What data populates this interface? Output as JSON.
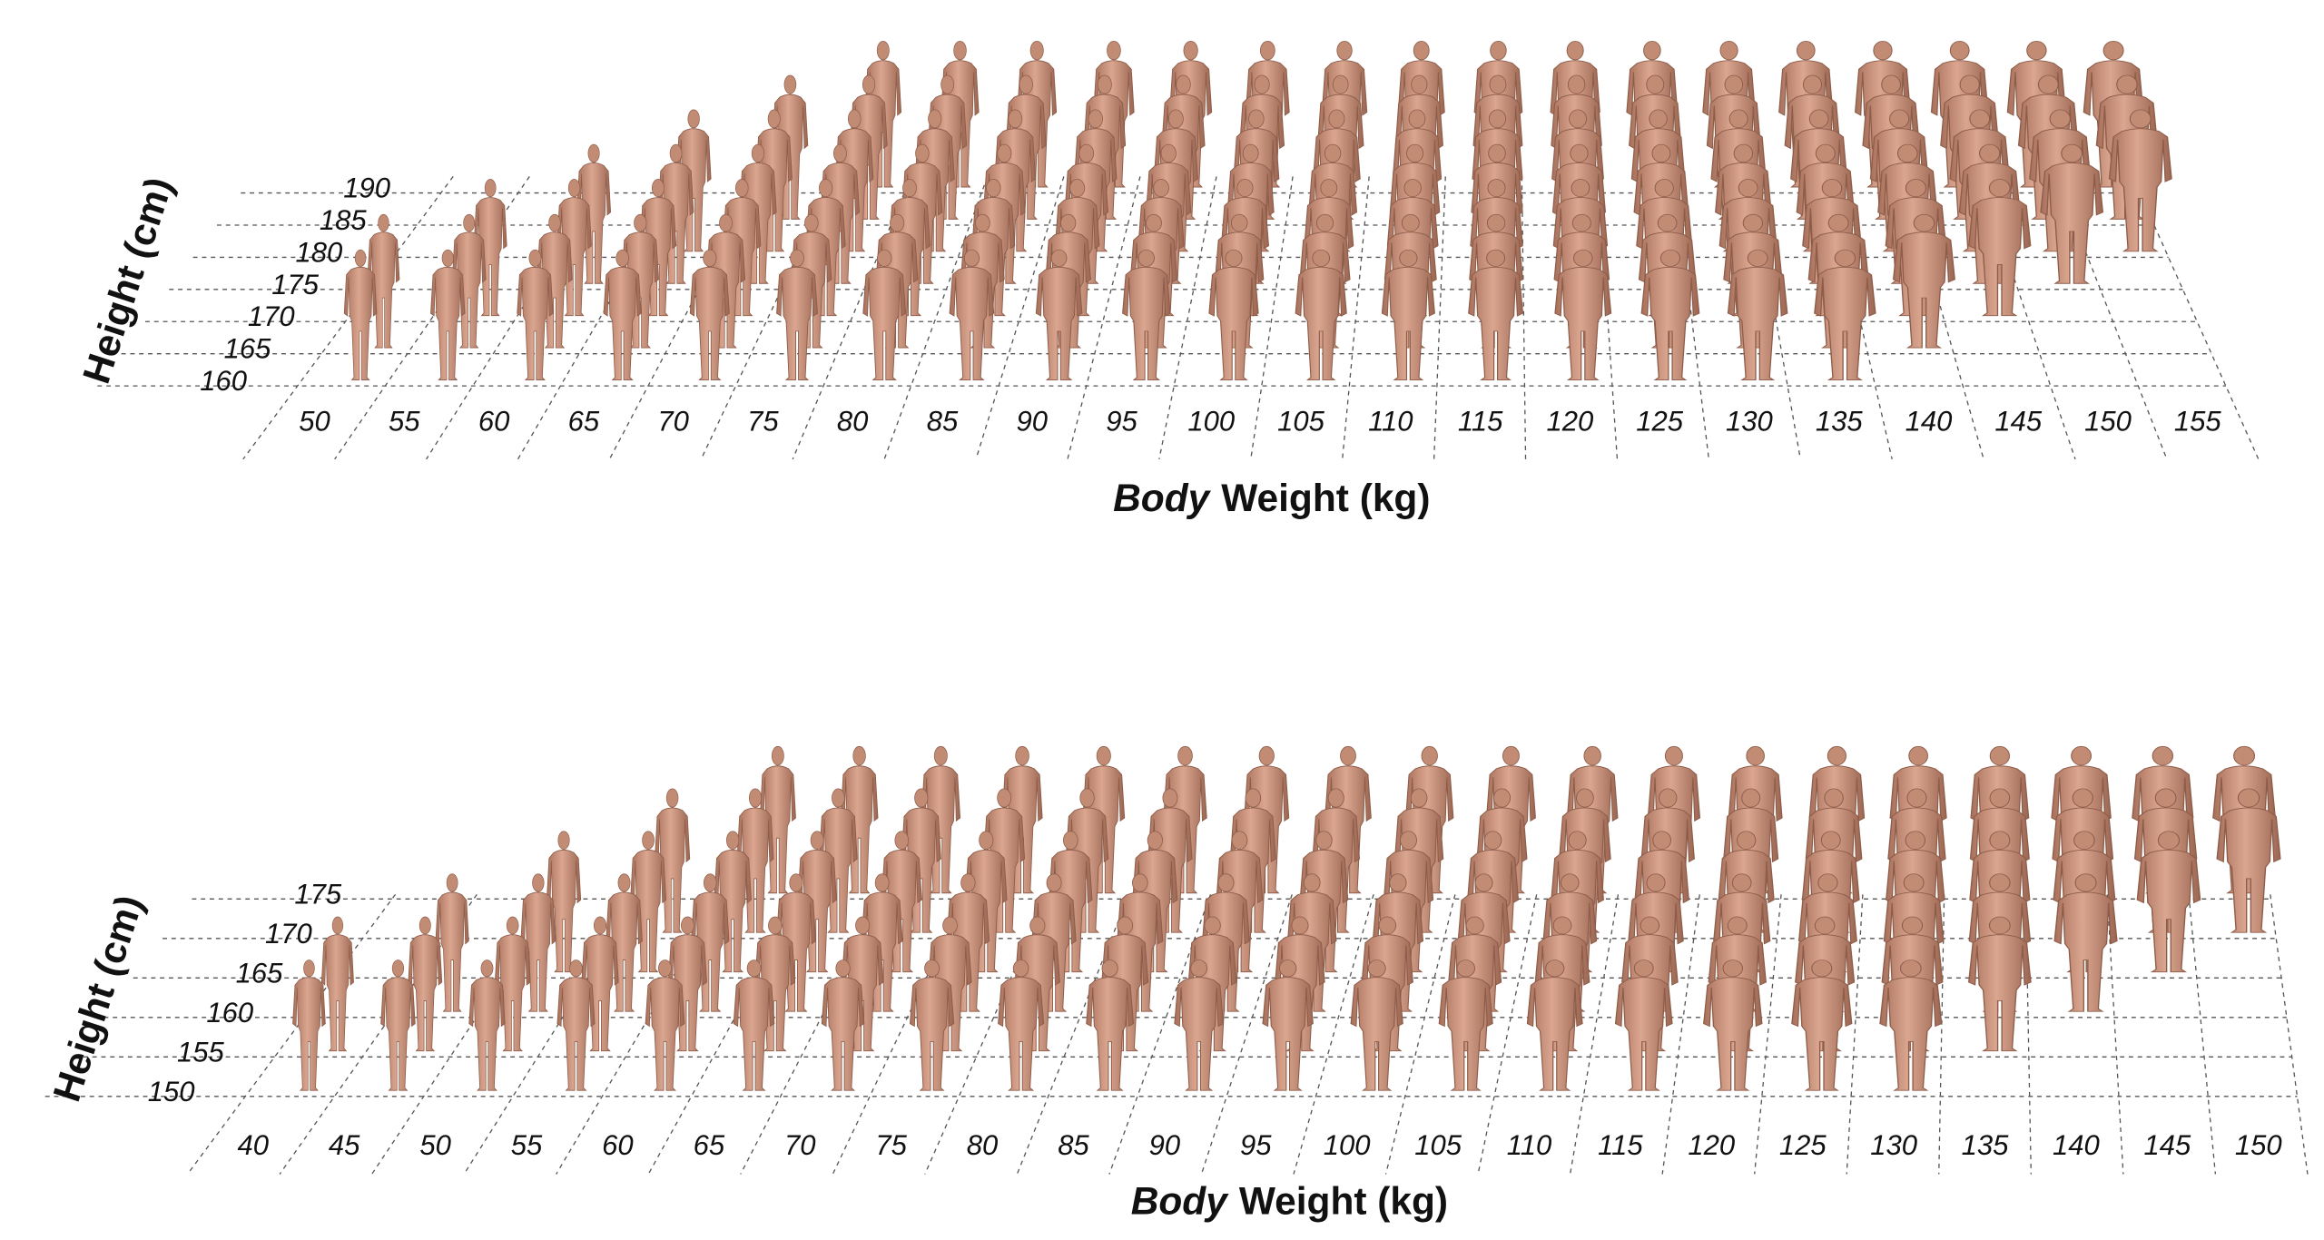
{
  "panels": [
    {
      "y_title": "Height (cm)",
      "x_title_italic": "Body",
      "x_title_rest": "Weight (kg)",
      "heights": [
        "160",
        "165",
        "170",
        "175",
        "180",
        "185",
        "190"
      ],
      "weights": [
        "50",
        "55",
        "60",
        "65",
        "70",
        "75",
        "80",
        "85",
        "90",
        "95",
        "100",
        "105",
        "110",
        "115",
        "120",
        "125",
        "130",
        "135",
        "140",
        "145",
        "150",
        "155"
      ]
    },
    {
      "y_title": "Height (cm)",
      "x_title_italic": "Body",
      "x_title_rest": "Weight (kg)",
      "heights": [
        "150",
        "155",
        "160",
        "165",
        "170",
        "175"
      ],
      "weights": [
        "40",
        "45",
        "50",
        "55",
        "60",
        "65",
        "70",
        "75",
        "80",
        "85",
        "90",
        "95",
        "100",
        "105",
        "110",
        "115",
        "120",
        "125",
        "130",
        "135",
        "140",
        "145",
        "150"
      ]
    }
  ]
}
